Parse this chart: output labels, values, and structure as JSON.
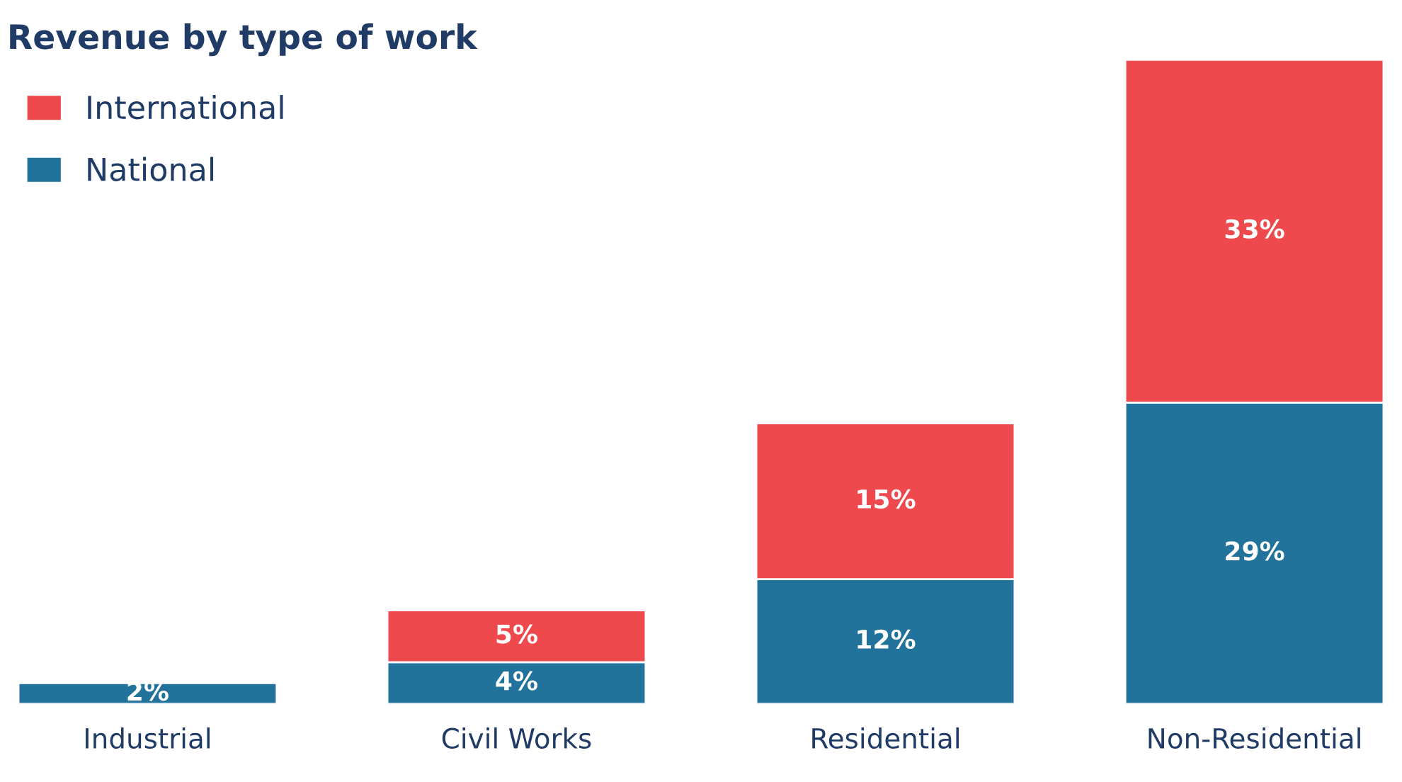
{
  "chart_data": {
    "type": "bar",
    "title": "Revenue by type of work",
    "stacked": true,
    "legend": "top left",
    "grid": false,
    "categories": [
      "Industrial",
      "Civil Works",
      "Residential",
      "Non-Residential"
    ],
    "series": [
      {
        "name": "National",
        "color": "#22739b",
        "values": [
          2,
          4,
          12,
          29
        ],
        "value_labels": [
          "2%",
          "4%",
          "12%",
          "29%"
        ]
      },
      {
        "name": "International",
        "color": "#ee4a4d",
        "values": [
          null,
          5,
          15,
          33
        ],
        "value_labels": [
          null,
          "5%",
          "15%",
          "33%"
        ]
      }
    ]
  }
}
